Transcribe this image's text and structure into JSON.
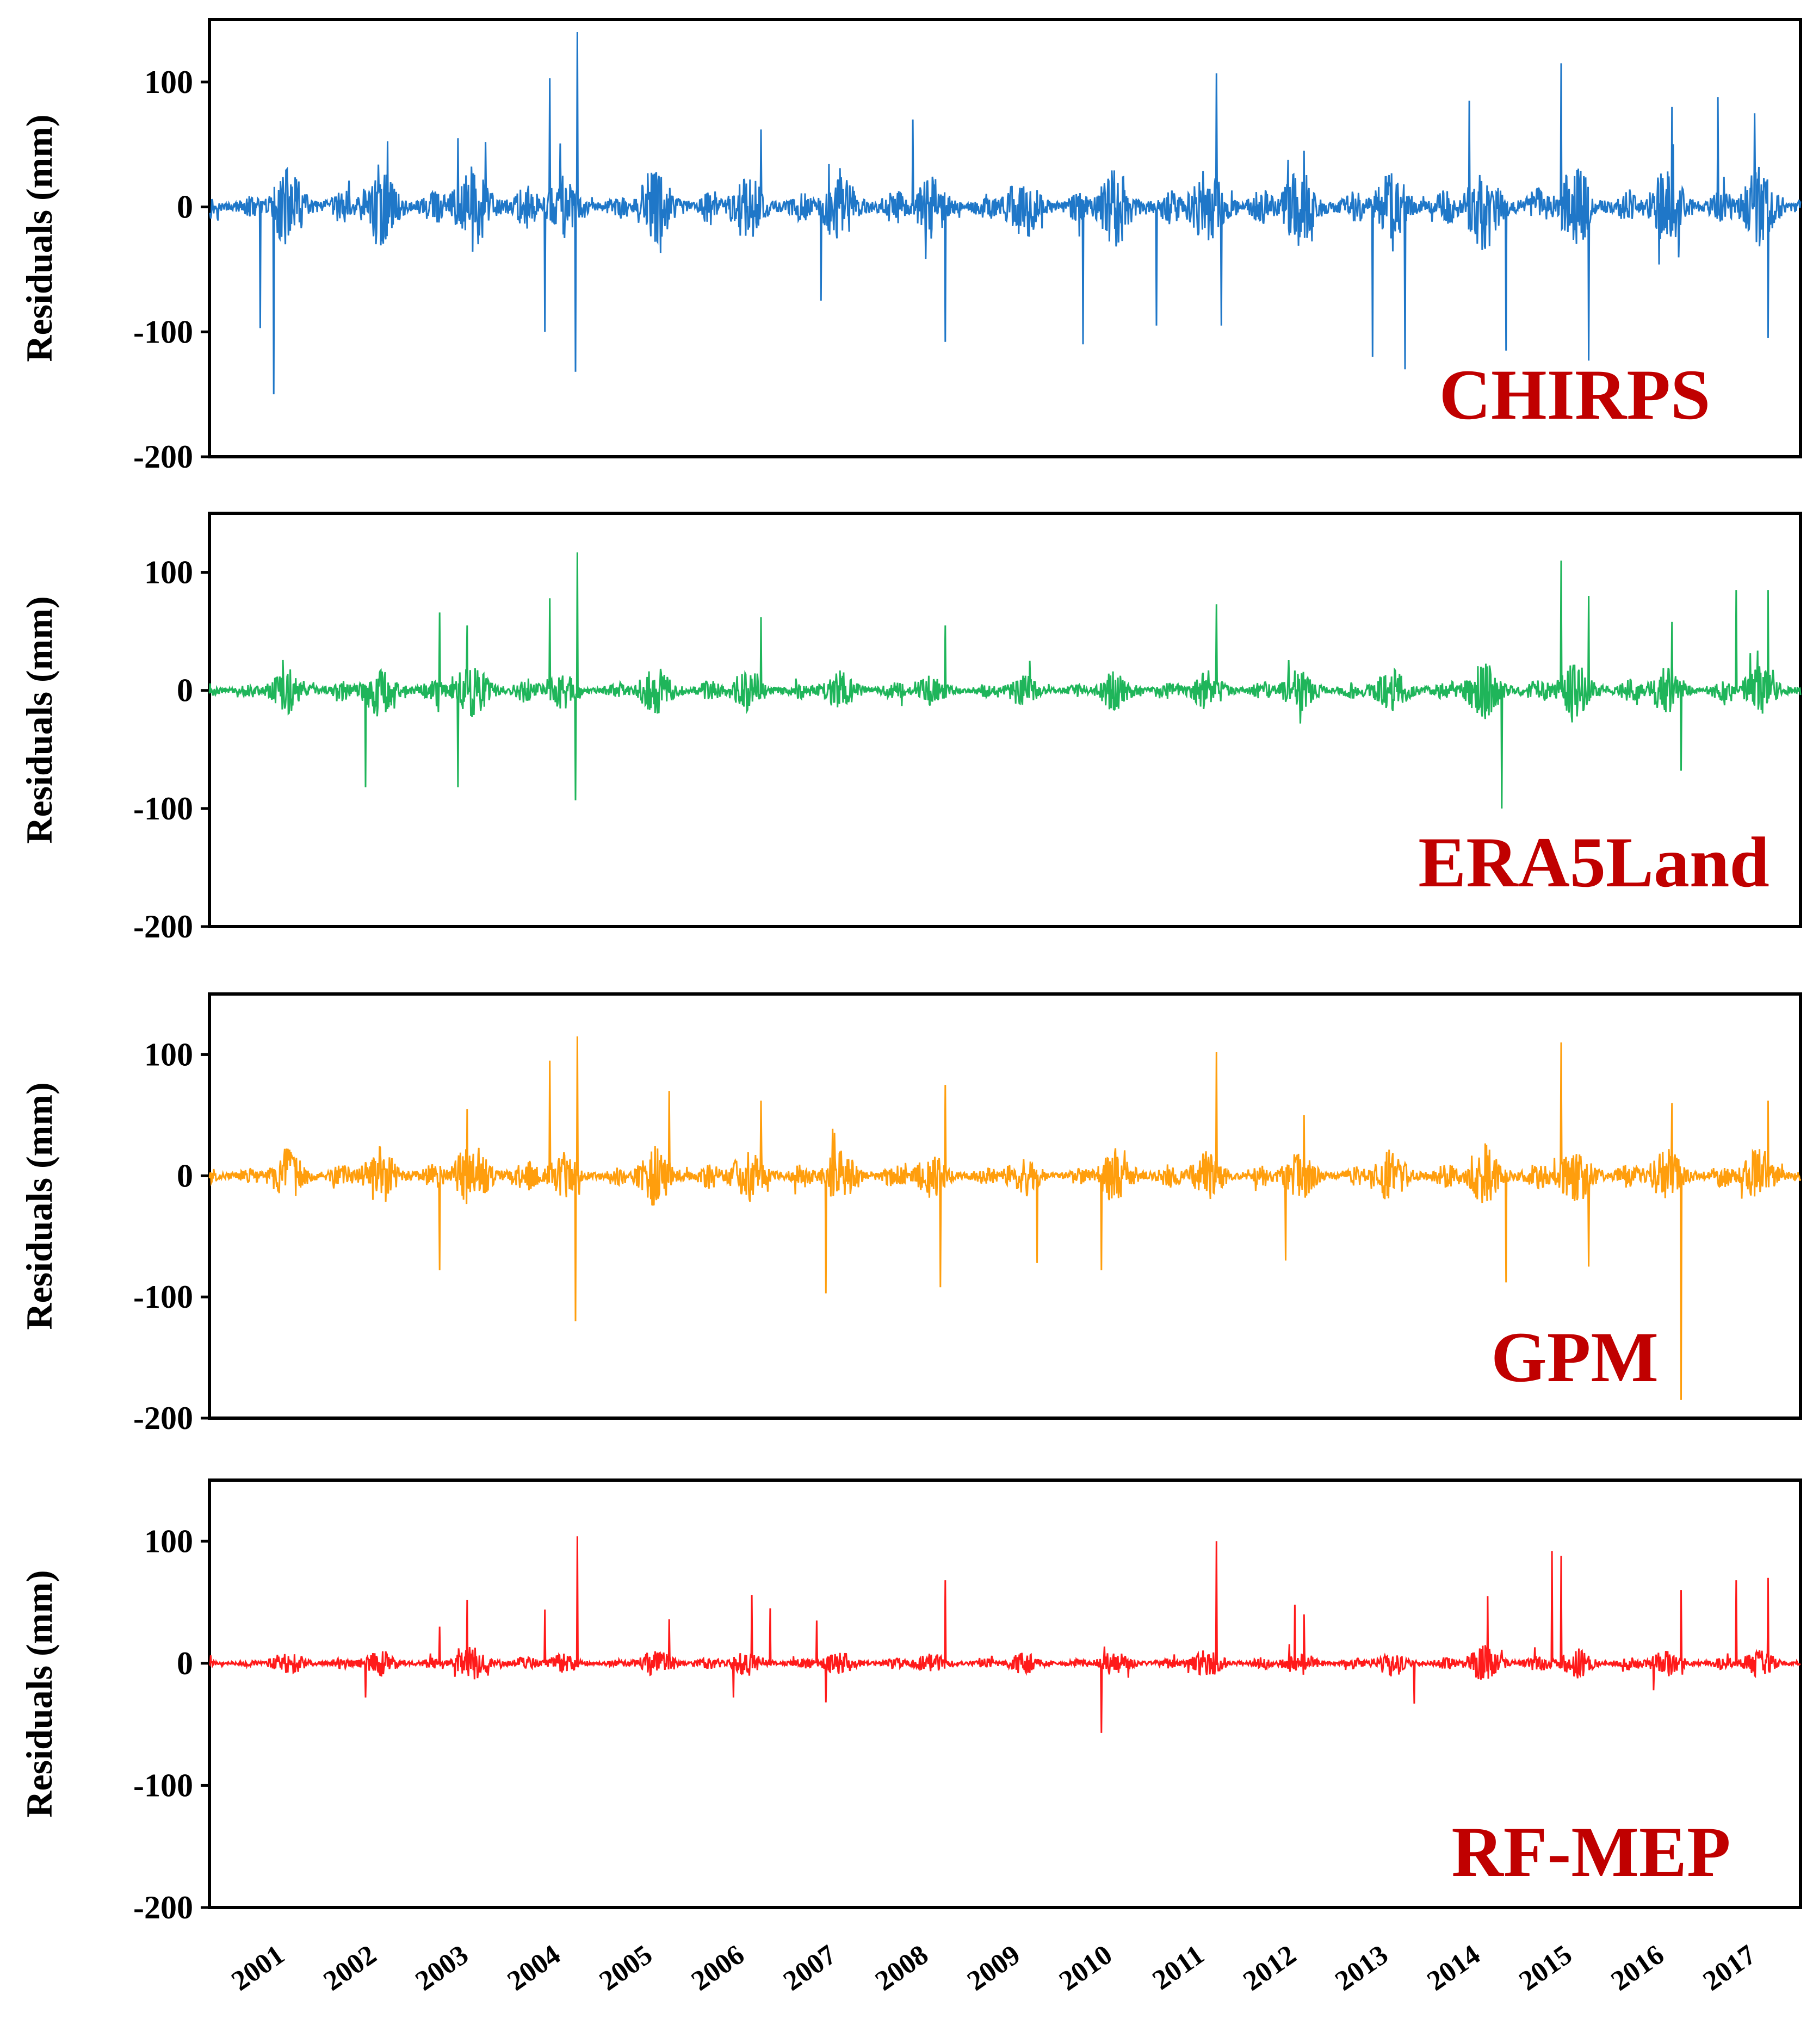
{
  "chart_data": [
    {
      "type": "line",
      "title": "CHIRPS",
      "series_name": "CHIRPS",
      "color": "#1f77c8",
      "label_color": "#c00000",
      "ylabel": "Residuals (mm)",
      "ylim": [
        -200,
        150
      ],
      "yticks": [
        -200,
        -100,
        0,
        100
      ],
      "ytick_labels": [
        "-200",
        "-100",
        "0",
        "100"
      ],
      "xlim": [
        2000.4,
        2017.7
      ],
      "wet_season_amplitudes": [
        18,
        28,
        30,
        35,
        22,
        30,
        25,
        28,
        22,
        25,
        28,
        30,
        28,
        28,
        32,
        30,
        28
      ],
      "spikes": [
        [
          2000.95,
          -97
        ],
        [
          2001.1,
          -150
        ],
        [
          2003.1,
          55
        ],
        [
          2003.4,
          52
        ],
        [
          2004.1,
          103
        ],
        [
          2004.05,
          -100
        ],
        [
          2004.4,
          140
        ],
        [
          2004.38,
          -132
        ],
        [
          2006.4,
          62
        ],
        [
          2007.05,
          -75
        ],
        [
          2008.05,
          70
        ],
        [
          2008.4,
          -108
        ],
        [
          2009.9,
          -110
        ],
        [
          2010.7,
          -95
        ],
        [
          2011.35,
          107
        ],
        [
          2011.4,
          -95
        ],
        [
          2012.3,
          45
        ],
        [
          2013.05,
          -120
        ],
        [
          2013.4,
          -130
        ],
        [
          2014.1,
          85
        ],
        [
          2014.5,
          -115
        ],
        [
          2015.1,
          115
        ],
        [
          2015.4,
          -123
        ],
        [
          2016.3,
          80
        ],
        [
          2016.8,
          88
        ],
        [
          2017.2,
          75
        ],
        [
          2017.35,
          -105
        ]
      ]
    },
    {
      "type": "line",
      "title": "ERA5Land",
      "series_name": "ERA5Land",
      "color": "#1fb55a",
      "label_color": "#c00000",
      "ylabel": "Residuals (mm)",
      "ylim": [
        -200,
        150
      ],
      "yticks": [
        -200,
        -100,
        0,
        100
      ],
      "ytick_labels": [
        "-200",
        "-100",
        "0",
        "100"
      ],
      "xlim": [
        2000.4,
        2017.7
      ],
      "wet_season_amplitudes": [
        12,
        18,
        20,
        22,
        14,
        18,
        16,
        16,
        12,
        12,
        16,
        15,
        16,
        18,
        22,
        20,
        18
      ],
      "spikes": [
        [
          2002.1,
          -82
        ],
        [
          2002.9,
          66
        ],
        [
          2003.1,
          -82
        ],
        [
          2003.2,
          55
        ],
        [
          2004.1,
          78
        ],
        [
          2004.4,
          117
        ],
        [
          2004.38,
          -93
        ],
        [
          2006.4,
          62
        ],
        [
          2008.4,
          55
        ],
        [
          2011.35,
          73
        ],
        [
          2014.45,
          -100
        ],
        [
          2015.1,
          110
        ],
        [
          2015.4,
          80
        ],
        [
          2016.3,
          58
        ],
        [
          2016.4,
          -68
        ],
        [
          2017.0,
          85
        ],
        [
          2017.35,
          85
        ]
      ]
    },
    {
      "type": "line",
      "title": "GPM",
      "series_name": "GPM",
      "color": "#ff9e0d",
      "label_color": "#c00000",
      "ylabel": "Residuals (mm)",
      "ylim": [
        -200,
        150
      ],
      "yticks": [
        -200,
        -100,
        0,
        100
      ],
      "ytick_labels": [
        "-200",
        "-100",
        "0",
        "100"
      ],
      "xlim": [
        2000.4,
        2017.7
      ],
      "wet_season_amplitudes": [
        14,
        20,
        22,
        26,
        16,
        22,
        20,
        20,
        16,
        16,
        20,
        18,
        18,
        20,
        24,
        22,
        20
      ],
      "spikes": [
        [
          2002.9,
          -78
        ],
        [
          2003.2,
          55
        ],
        [
          2004.1,
          95
        ],
        [
          2004.4,
          115
        ],
        [
          2004.38,
          -120
        ],
        [
          2005.4,
          70
        ],
        [
          2006.4,
          62
        ],
        [
          2007.1,
          -97
        ],
        [
          2008.4,
          75
        ],
        [
          2008.35,
          -92
        ],
        [
          2009.4,
          -72
        ],
        [
          2010.1,
          -78
        ],
        [
          2011.35,
          102
        ],
        [
          2012.1,
          -70
        ],
        [
          2012.3,
          50
        ],
        [
          2014.5,
          -88
        ],
        [
          2015.1,
          110
        ],
        [
          2015.4,
          -75
        ],
        [
          2016.3,
          60
        ],
        [
          2016.4,
          -185
        ],
        [
          2017.35,
          62
        ]
      ]
    },
    {
      "type": "line",
      "title": "RF-MEP",
      "series_name": "RF-MEP",
      "color": "#ff1a1a",
      "label_color": "#c00000",
      "ylabel": "Residuals (mm)",
      "ylim": [
        -200,
        150
      ],
      "yticks": [
        -200,
        -100,
        0,
        100
      ],
      "ytick_labels": [
        "-200",
        "-100",
        "0",
        "100"
      ],
      "xlim": [
        2000.4,
        2017.7
      ],
      "xticks": [
        2001,
        2002,
        2003,
        2004,
        2005,
        2006,
        2007,
        2008,
        2009,
        2010,
        2011,
        2012,
        2013,
        2014,
        2015,
        2016,
        2017
      ],
      "xtick_labels": [
        "2001",
        "2002",
        "2003",
        "2004",
        "2005",
        "2006",
        "2007",
        "2008",
        "2009",
        "2010",
        "2011",
        "2012",
        "2013",
        "2014",
        "2015",
        "2016",
        "2017"
      ],
      "wet_season_amplitudes": [
        6,
        9,
        10,
        12,
        7,
        10,
        9,
        9,
        8,
        8,
        9,
        10,
        9,
        10,
        14,
        12,
        10
      ],
      "spikes": [
        [
          2002.1,
          -28
        ],
        [
          2002.9,
          30
        ],
        [
          2003.2,
          52
        ],
        [
          2004.05,
          44
        ],
        [
          2004.4,
          104
        ],
        [
          2005.4,
          36
        ],
        [
          2006.3,
          56
        ],
        [
          2006.1,
          -28
        ],
        [
          2006.5,
          45
        ],
        [
          2007.1,
          -32
        ],
        [
          2007.0,
          35
        ],
        [
          2008.4,
          68
        ],
        [
          2010.1,
          -57
        ],
        [
          2011.35,
          100
        ],
        [
          2012.2,
          48
        ],
        [
          2012.3,
          40
        ],
        [
          2013.5,
          -33
        ],
        [
          2014.3,
          55
        ],
        [
          2015.0,
          92
        ],
        [
          2015.1,
          88
        ],
        [
          2016.1,
          -22
        ],
        [
          2016.4,
          60
        ],
        [
          2017.0,
          68
        ],
        [
          2017.35,
          70
        ]
      ]
    }
  ]
}
